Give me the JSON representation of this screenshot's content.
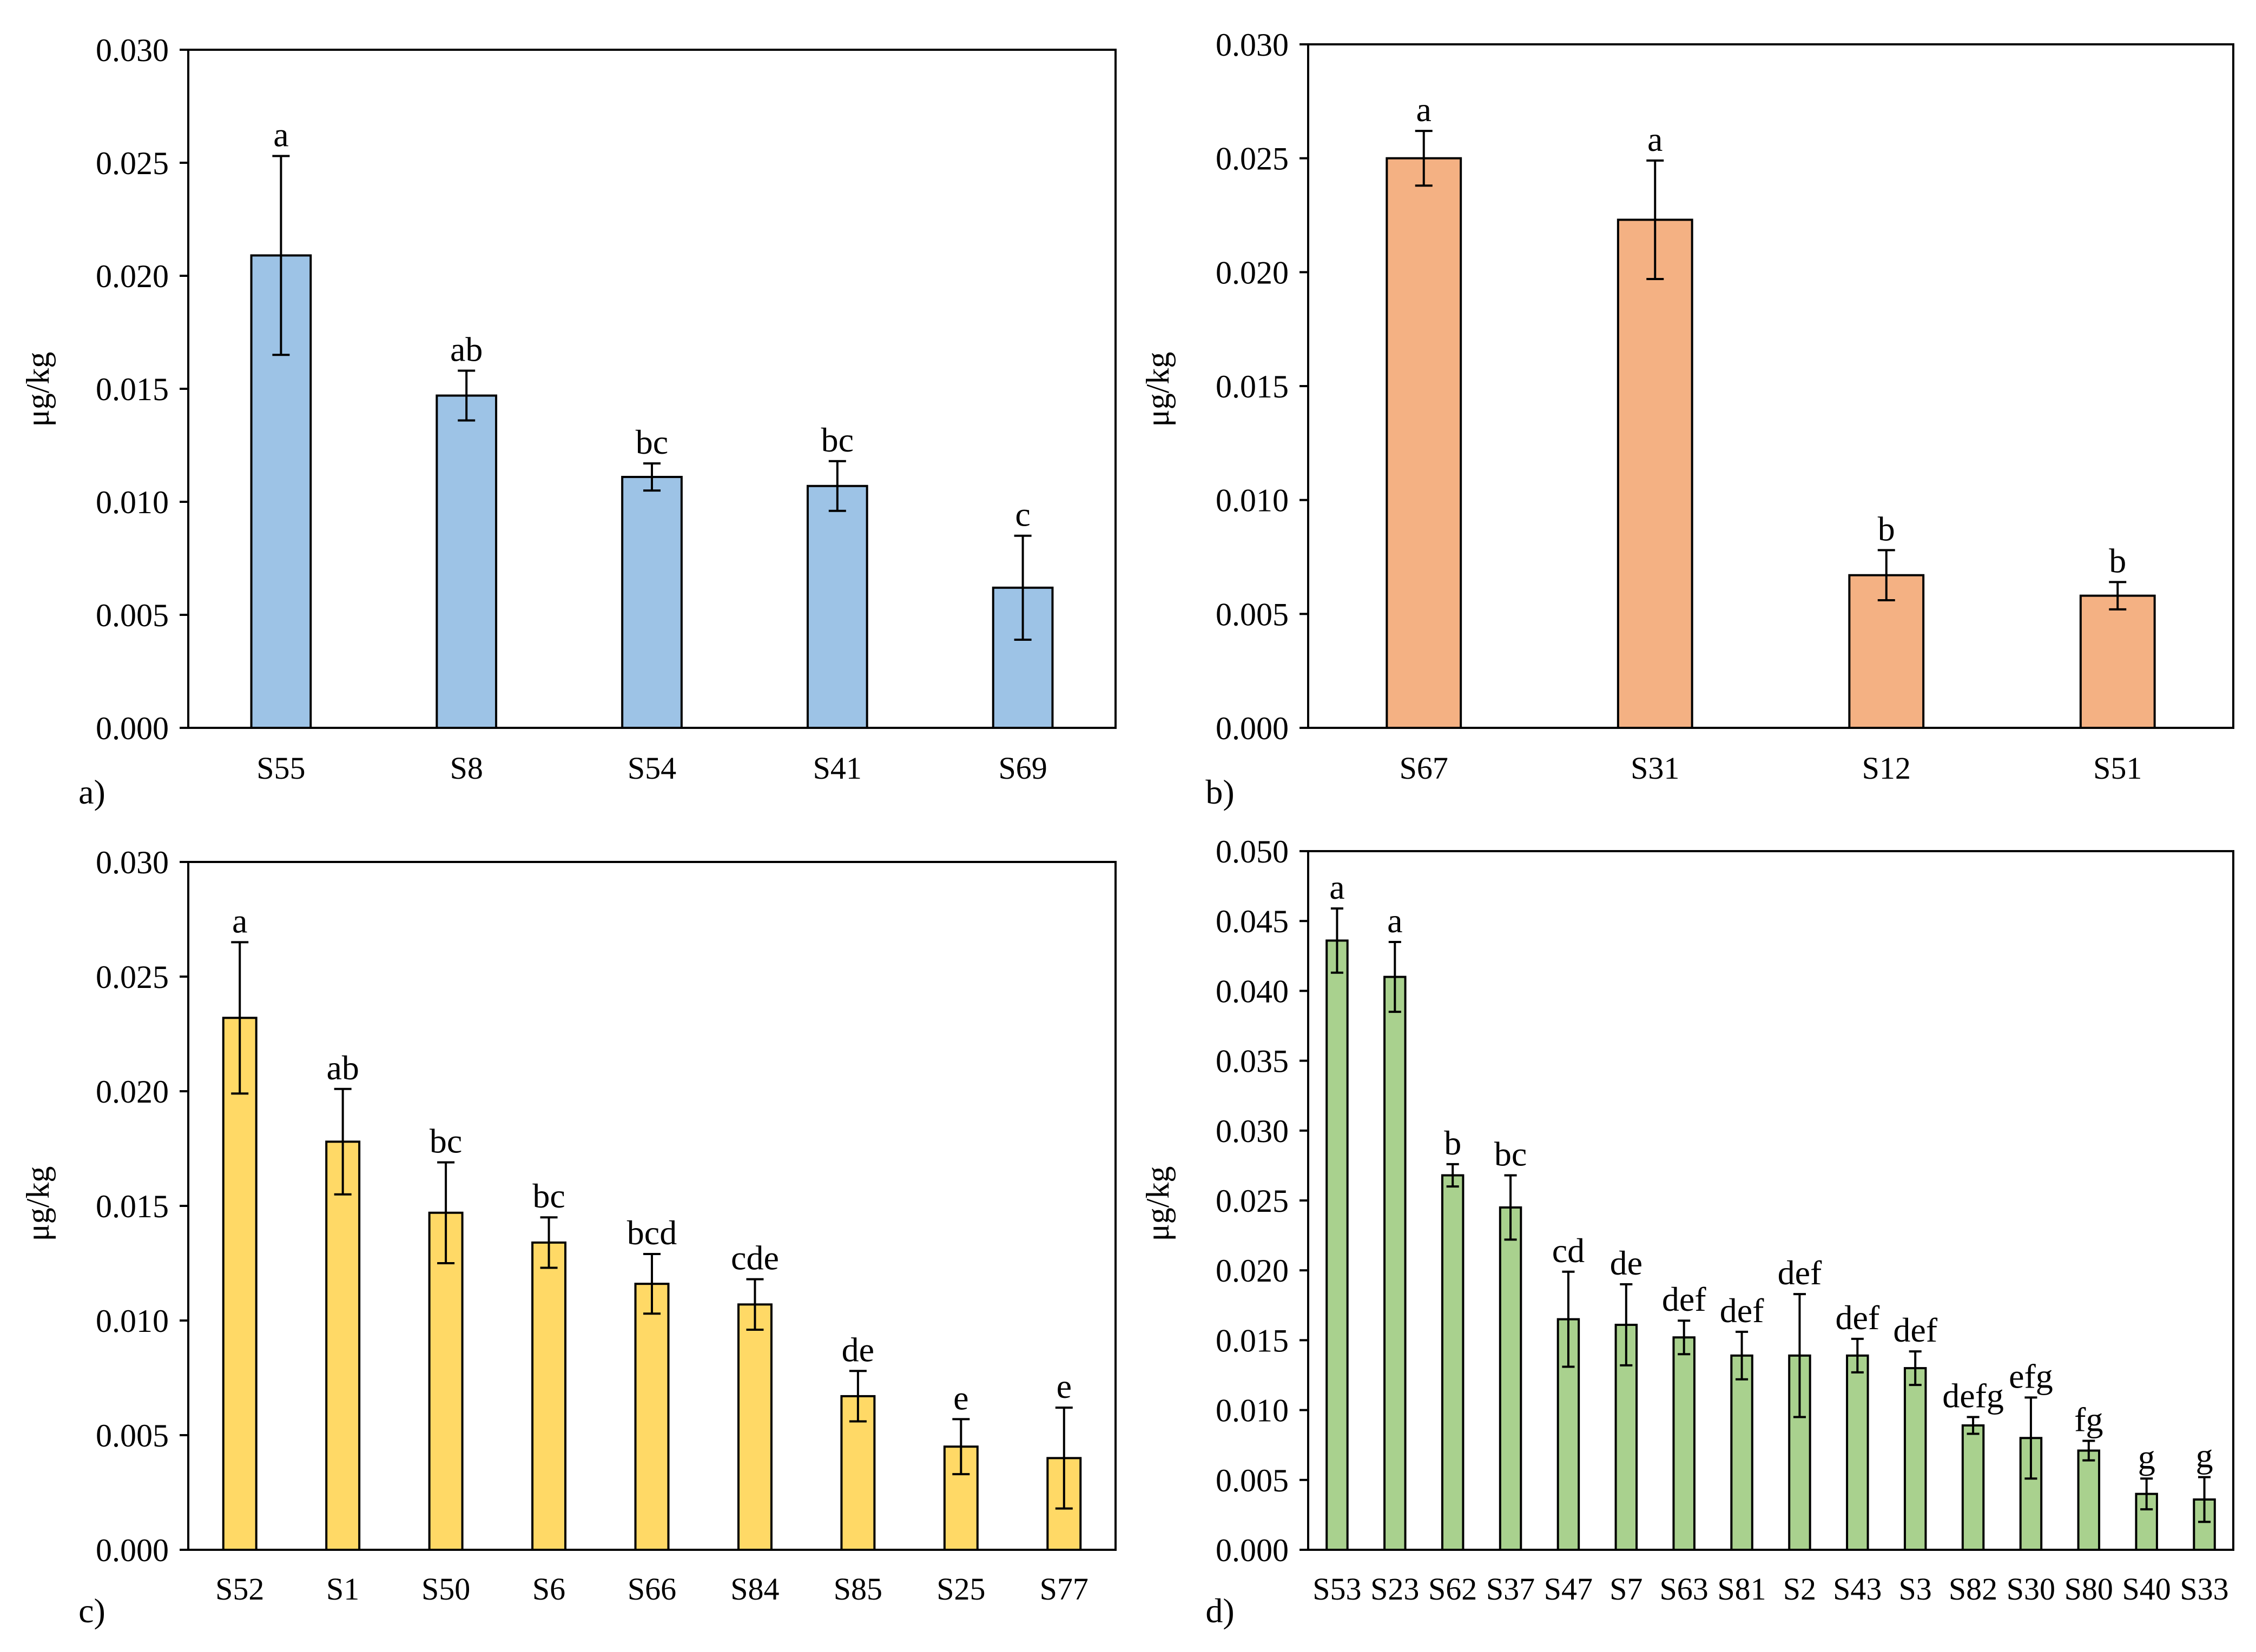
{
  "chart_data": [
    {
      "type": "bar",
      "panel_label": "a)",
      "ylabel": "μg/kg",
      "ylim": [
        0,
        0.03
      ],
      "yticks": [
        "0.000",
        "0.005",
        "0.010",
        "0.015",
        "0.020",
        "0.025",
        "0.030"
      ],
      "bar_color": "#9DC3E6",
      "grid": false,
      "categories": [
        "S55",
        "S8",
        "S54",
        "S41",
        "S69"
      ],
      "values": [
        0.0209,
        0.0147,
        0.0111,
        0.0107,
        0.0062
      ],
      "errors": [
        0.0044,
        0.0011,
        0.0006,
        0.0011,
        0.0023
      ],
      "letters": [
        "a",
        "ab",
        "bc",
        "bc",
        "c"
      ]
    },
    {
      "type": "bar",
      "panel_label": "b)",
      "ylabel": "μg/kg",
      "ylim": [
        0,
        0.03
      ],
      "yticks": [
        "0.000",
        "0.005",
        "0.010",
        "0.015",
        "0.020",
        "0.025",
        "0.030"
      ],
      "bar_color": "#F4B183",
      "grid": false,
      "categories": [
        "S67",
        "S31",
        "S12",
        "S51"
      ],
      "values": [
        0.025,
        0.0223,
        0.0067,
        0.0058
      ],
      "errors": [
        0.0012,
        0.0026,
        0.0011,
        0.0006
      ],
      "letters": [
        "a",
        "a",
        "b",
        "b"
      ]
    },
    {
      "type": "bar",
      "panel_label": "c)",
      "ylabel": "μg/kg",
      "ylim": [
        0,
        0.03
      ],
      "yticks": [
        "0.000",
        "0.005",
        "0.010",
        "0.015",
        "0.020",
        "0.025",
        "0.030"
      ],
      "bar_color": "#FFD966",
      "grid": false,
      "categories": [
        "S52",
        "S1",
        "S50",
        "S6",
        "S66",
        "S84",
        "S85",
        "S25",
        "S77"
      ],
      "values": [
        0.0232,
        0.0178,
        0.0147,
        0.0134,
        0.0116,
        0.0107,
        0.0067,
        0.0045,
        0.004
      ],
      "errors": [
        0.0033,
        0.0023,
        0.0022,
        0.0011,
        0.0013,
        0.0011,
        0.0011,
        0.0012,
        0.0022
      ],
      "letters": [
        "a",
        "ab",
        "bc",
        "bc",
        "bcd",
        "cde",
        "de",
        "e",
        "e"
      ]
    },
    {
      "type": "bar",
      "panel_label": "d)",
      "ylabel": "μg/kg",
      "ylim": [
        0,
        0.05
      ],
      "yticks": [
        "0.000",
        "0.005",
        "0.010",
        "0.015",
        "0.020",
        "0.025",
        "0.030",
        "0.035",
        "0.040",
        "0.045",
        "0.050"
      ],
      "bar_color": "#A9D18E",
      "grid": false,
      "categories": [
        "S53",
        "S23",
        "S62",
        "S37",
        "S47",
        "S7",
        "S63",
        "S81",
        "S2",
        "S43",
        "S3",
        "S82",
        "S30",
        "S80",
        "S40",
        "S33"
      ],
      "values": [
        0.0436,
        0.041,
        0.0268,
        0.0245,
        0.0165,
        0.0161,
        0.0152,
        0.0139,
        0.0139,
        0.0139,
        0.013,
        0.0089,
        0.008,
        0.0071,
        0.004,
        0.0036
      ],
      "errors": [
        0.0023,
        0.0025,
        0.0008,
        0.0023,
        0.0034,
        0.0029,
        0.0012,
        0.0017,
        0.0044,
        0.0012,
        0.0012,
        0.0006,
        0.0029,
        0.0007,
        0.0011,
        0.0016
      ],
      "letters": [
        "a",
        "a",
        "b",
        "bc",
        "cd",
        "de",
        "def",
        "def",
        "def",
        "def",
        "def",
        "defg",
        "efg",
        "fg",
        "g",
        "g"
      ]
    }
  ]
}
